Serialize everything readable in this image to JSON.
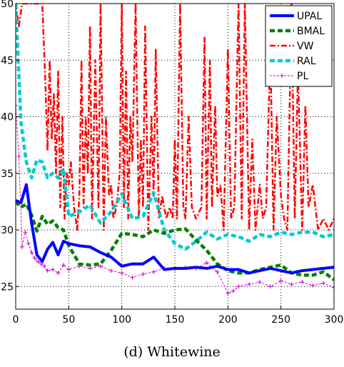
{
  "caption": "(d) Whitewine",
  "chart_data": {
    "type": "line",
    "xlim": [
      0,
      300
    ],
    "ylim": [
      23,
      50
    ],
    "xticks": [
      0,
      50,
      100,
      150,
      200,
      250,
      300
    ],
    "yticks": [
      25,
      30,
      35,
      40,
      45,
      50
    ],
    "grid": true,
    "legend_position": "top-right",
    "series": [
      {
        "name": "UPAL",
        "color": "#0000ff",
        "style": "solid",
        "x": [
          0,
          5,
          10,
          15,
          20,
          25,
          30,
          35,
          40,
          45,
          50,
          60,
          70,
          80,
          90,
          100,
          110,
          120,
          130,
          140,
          150,
          160,
          170,
          180,
          190,
          200,
          210,
          220,
          230,
          240,
          250,
          260,
          270,
          280,
          290,
          300
        ],
        "y": [
          32.6,
          32.4,
          34.0,
          30.6,
          27.8,
          27.2,
          28.3,
          28.9,
          27.8,
          29.0,
          28.8,
          28.6,
          28.5,
          28.0,
          27.6,
          26.8,
          27.0,
          27.0,
          27.6,
          26.5,
          26.6,
          26.6,
          26.7,
          26.6,
          26.8,
          26.5,
          26.5,
          26.2,
          26.4,
          26.6,
          26.4,
          26.2,
          26.4,
          26.5,
          26.6,
          26.7
        ]
      },
      {
        "name": "BMAL",
        "color": "#008000",
        "style": "dashed",
        "x": [
          0,
          5,
          10,
          15,
          20,
          25,
          30,
          35,
          40,
          45,
          50,
          60,
          70,
          80,
          90,
          100,
          110,
          120,
          130,
          140,
          150,
          160,
          170,
          180,
          190,
          200,
          210,
          220,
          230,
          240,
          250,
          260,
          270,
          280,
          290,
          300
        ],
        "y": [
          32.5,
          32.0,
          32.3,
          31.3,
          29.9,
          31.2,
          30.5,
          30.8,
          30.2,
          30.0,
          28.6,
          27.0,
          26.9,
          27.0,
          28.2,
          29.7,
          29.6,
          29.4,
          30.0,
          29.7,
          30.0,
          30.1,
          29.1,
          28.2,
          27.0,
          26.4,
          26.2,
          26.2,
          26.5,
          26.7,
          26.9,
          26.2,
          26.0,
          26.0,
          26.3,
          25.6
        ]
      },
      {
        "name": "VW",
        "color": "#ff0000",
        "style": "dashdot",
        "x": [
          0,
          3,
          6,
          10,
          15,
          20,
          25,
          28,
          30,
          32,
          34,
          36,
          38,
          40,
          42,
          44,
          46,
          48,
          50,
          52,
          55,
          58,
          60,
          62,
          64,
          66,
          68,
          70,
          72,
          75,
          78,
          80,
          83,
          85,
          88,
          90,
          92,
          95,
          98,
          100,
          102,
          104,
          106,
          108,
          110,
          113,
          116,
          118,
          120,
          122,
          125,
          128,
          130,
          132,
          135,
          138,
          140,
          142,
          145,
          148,
          150,
          152,
          155,
          158,
          160,
          163,
          166,
          170,
          175,
          178,
          180,
          183,
          185,
          188,
          190,
          193,
          196,
          200,
          203,
          206,
          210,
          213,
          216,
          220,
          223,
          226,
          230,
          233,
          236,
          240,
          243,
          246,
          250,
          253,
          256,
          260,
          263,
          266,
          270,
          273,
          276,
          280,
          285,
          290,
          295,
          300
        ],
        "y": [
          50,
          48,
          50,
          50,
          50,
          50,
          50,
          43,
          37,
          45,
          38,
          42,
          35,
          44,
          32,
          40,
          31,
          35,
          34,
          36,
          32,
          30,
          33,
          45,
          32,
          40,
          35,
          48,
          31,
          45,
          32,
          50,
          30,
          40,
          33,
          34,
          31,
          32,
          35,
          50,
          32,
          44,
          31,
          40,
          36,
          50,
          31,
          38,
          32,
          48,
          30,
          40,
          33,
          46,
          31,
          33,
          32,
          31,
          32,
          31,
          38,
          31,
          50,
          32,
          31,
          40,
          32,
          31,
          32,
          47,
          31,
          45,
          32,
          41,
          33,
          34,
          30,
          46,
          31,
          32,
          50,
          31,
          50,
          30,
          38,
          30,
          34,
          31,
          32,
          46,
          30,
          40,
          33,
          31,
          30,
          50,
          31,
          44,
          30,
          41,
          32,
          34,
          30,
          31,
          30,
          31
        ]
      },
      {
        "name": "RAL",
        "color": "#00cccc",
        "style": "dashed",
        "x": [
          0,
          5,
          10,
          15,
          20,
          25,
          30,
          35,
          40,
          45,
          50,
          60,
          70,
          80,
          90,
          100,
          110,
          120,
          130,
          140,
          150,
          160,
          170,
          180,
          190,
          200,
          210,
          220,
          230,
          240,
          250,
          260,
          270,
          280,
          290,
          300
        ],
        "y": [
          50,
          39.5,
          36.0,
          34.6,
          36.2,
          36.0,
          34.6,
          35.0,
          34.6,
          35.4,
          31.2,
          31.6,
          32.2,
          30.6,
          31.6,
          33.2,
          31.0,
          31.2,
          33.3,
          30.0,
          28.8,
          28.3,
          29.0,
          29.8,
          29.2,
          29.6,
          29.4,
          29.0,
          29.6,
          29.4,
          29.8,
          29.6,
          29.8,
          29.8,
          29.4,
          29.6
        ]
      },
      {
        "name": "PL",
        "color": "#cc00cc",
        "style": "plus",
        "x": [
          0,
          3,
          6,
          9,
          12,
          15,
          18,
          21,
          24,
          27,
          30,
          35,
          40,
          45,
          50,
          60,
          70,
          80,
          90,
          100,
          110,
          120,
          130,
          140,
          150,
          160,
          170,
          180,
          190,
          200,
          205,
          210,
          220,
          230,
          240,
          250,
          260,
          270,
          280,
          290,
          300
        ],
        "y": [
          41,
          36.5,
          28.5,
          29.8,
          28.8,
          28.0,
          27.5,
          27.2,
          27.0,
          26.8,
          26.4,
          26.5,
          26.2,
          26.9,
          26.5,
          26.8,
          26.6,
          26.8,
          26.4,
          26.2,
          25.8,
          26.1,
          26.3,
          26.6,
          26.5,
          26.7,
          26.6,
          27.1,
          26.3,
          24.4,
          24.6,
          25.0,
          25.2,
          25.4,
          25.0,
          25.5,
          25.2,
          25.4,
          25.1,
          25.3,
          24.9
        ]
      }
    ]
  }
}
